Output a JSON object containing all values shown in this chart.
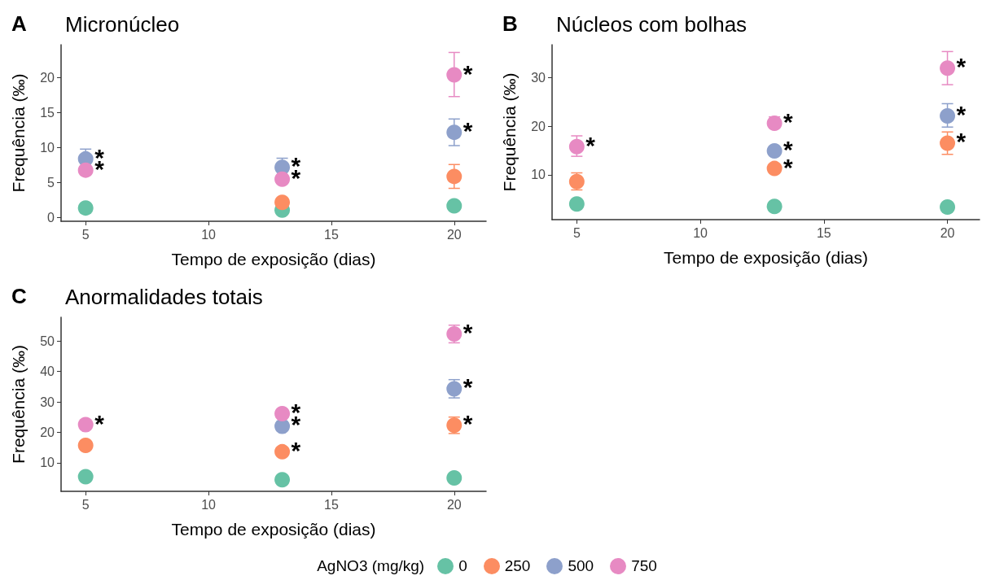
{
  "chart_data": [
    {
      "type": "scatter",
      "title": "Micronúcleo",
      "annotations": [
        "A",
        {
          "text": "*",
          "x": 5,
          "y": 8.4
        },
        {
          "text": "*",
          "x": 5,
          "y": 6.8
        },
        {
          "text": "*",
          "x": 13,
          "y": 7.2
        },
        {
          "text": "*",
          "x": 13,
          "y": 5.5
        },
        {
          "text": "*",
          "x": 20,
          "y": 20.4
        },
        {
          "text": "*",
          "x": 20,
          "y": 12.2
        }
      ],
      "xlabel": "Tempo de exposição (dias)",
      "ylabel": "Frequência (‰)",
      "x": [
        5,
        13,
        20
      ],
      "xlim": [
        4,
        21.3
      ],
      "xticks": [
        5,
        10,
        15,
        20
      ],
      "ylim": [
        -0.5,
        24.7
      ],
      "yticks": [
        0,
        5,
        10,
        15,
        20
      ],
      "marker": "circle",
      "grid": false,
      "series": [
        {
          "color": "#66c2a5",
          "values": [
            1.4,
            1.1,
            1.7
          ],
          "errors": [
            null,
            null,
            null
          ]
        },
        {
          "color": "#fc8d62",
          "values": [
            null,
            2.2,
            5.9
          ],
          "errors": [
            null,
            null,
            [
              4.2,
              7.6
            ]
          ]
        },
        {
          "color": "#8da0cb",
          "values": [
            8.4,
            7.2,
            12.2
          ],
          "errors": [
            [
              8.4,
              9.8
            ],
            [
              7.2,
              8.5
            ],
            [
              10.3,
              14.1
            ]
          ]
        },
        {
          "color": "#e78ac3",
          "values": [
            6.8,
            5.5,
            20.4
          ],
          "errors": [
            null,
            null,
            [
              17.3,
              23.6
            ]
          ]
        }
      ]
    },
    {
      "type": "scatter",
      "title": "Núcleos com bolhas",
      "annotations": [
        "B",
        {
          "text": "*",
          "x": 5,
          "y": 15.8
        },
        {
          "text": "*",
          "x": 13,
          "y": 20.6
        },
        {
          "text": "*",
          "x": 13,
          "y": 14.9
        },
        {
          "text": "*",
          "x": 13,
          "y": 11.3
        },
        {
          "text": "*",
          "x": 20,
          "y": 31.9
        },
        {
          "text": "*",
          "x": 20,
          "y": 22.1
        },
        {
          "text": "*",
          "x": 20,
          "y": 16.5
        }
      ],
      "xlabel": "Tempo de exposição (dias)",
      "ylabel": "Frequência (‰)",
      "x": [
        5,
        13,
        20
      ],
      "xlim": [
        4,
        21.3
      ],
      "xticks": [
        5,
        10,
        15,
        20
      ],
      "ylim": [
        0.8,
        36.7
      ],
      "yticks": [
        10,
        20,
        30
      ],
      "marker": "circle",
      "grid": false,
      "series": [
        {
          "color": "#66c2a5",
          "values": [
            4.0,
            3.5,
            3.4
          ],
          "errors": [
            null,
            null,
            null
          ]
        },
        {
          "color": "#fc8d62",
          "values": [
            8.6,
            11.3,
            16.5
          ],
          "errors": [
            [
              6.9,
              10.4
            ],
            null,
            [
              14.2,
              18.8
            ]
          ]
        },
        {
          "color": "#8da0cb",
          "values": [
            null,
            14.9,
            22.1
          ],
          "errors": [
            null,
            null,
            [
              19.8,
              24.6
            ]
          ]
        },
        {
          "color": "#e78ac3",
          "values": [
            15.8,
            20.6,
            31.9
          ],
          "errors": [
            [
              13.8,
              18.0
            ],
            [
              19.6,
              21.9
            ],
            [
              28.5,
              35.3
            ]
          ]
        }
      ]
    },
    {
      "type": "scatter",
      "title": "Anormalidades totais",
      "annotations": [
        "C",
        {
          "text": "*",
          "x": 5,
          "y": 22.5
        },
        {
          "text": "*",
          "x": 13,
          "y": 26.1
        },
        {
          "text": "*",
          "x": 13,
          "y": 22.0
        },
        {
          "text": "*",
          "x": 13,
          "y": 13.6
        },
        {
          "text": "*",
          "x": 20,
          "y": 52.3
        },
        {
          "text": "*",
          "x": 20,
          "y": 34.3
        },
        {
          "text": "*",
          "x": 20,
          "y": 22.3
        }
      ],
      "xlabel": "Tempo de exposição (dias)",
      "ylabel": "Frequência (‰)",
      "x": [
        5,
        13,
        20
      ],
      "xlim": [
        4,
        21.3
      ],
      "xticks": [
        5,
        10,
        15,
        20
      ],
      "ylim": [
        0.6,
        57.8
      ],
      "yticks": [
        10,
        20,
        30,
        40,
        50
      ],
      "marker": "circle",
      "grid": false,
      "legend": "bottom",
      "legend_title": "AgNO3 (mg/kg)",
      "series": [
        {
          "name": "0",
          "color": "#66c2a5",
          "values": [
            5.4,
            4.4,
            5.0
          ],
          "errors": [
            null,
            null,
            null
          ]
        },
        {
          "name": "250",
          "color": "#fc8d62",
          "values": [
            15.7,
            13.6,
            22.3
          ],
          "errors": [
            null,
            null,
            [
              19.6,
              25.0
            ]
          ]
        },
        {
          "name": "500",
          "color": "#8da0cb",
          "values": [
            null,
            22.0,
            34.3
          ],
          "errors": [
            null,
            null,
            [
              31.3,
              37.3
            ]
          ]
        },
        {
          "name": "750",
          "color": "#e78ac3",
          "values": [
            22.5,
            26.1,
            52.3
          ],
          "errors": [
            null,
            null,
            [
              49.4,
              55.2
            ]
          ]
        }
      ]
    }
  ]
}
